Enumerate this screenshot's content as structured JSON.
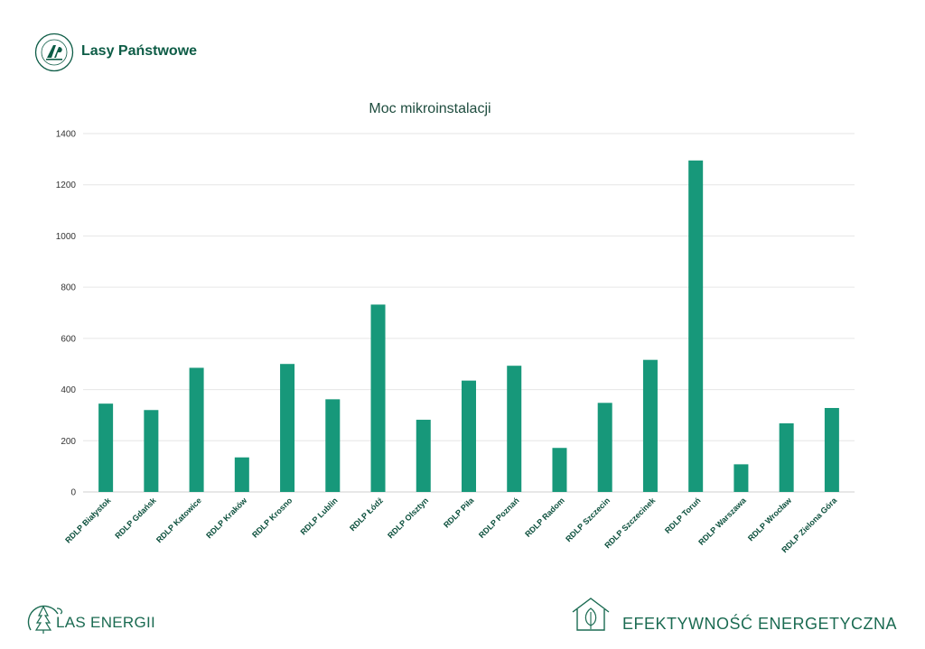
{
  "header": {
    "brand_name": "Lasy Państwowe",
    "logo_ring_text": "LASY PAŃSTWOWE"
  },
  "colors": {
    "bar": "#17987a",
    "brand": "#0d5c46",
    "grid": "#e6e6e6",
    "axis_text": "#333333",
    "label_text": "#0b4f3c"
  },
  "chart_data": {
    "type": "bar",
    "title": "Moc mikroinstalacji",
    "xlabel": "",
    "ylabel": "",
    "ylim": [
      0,
      1400
    ],
    "yticks": [
      0,
      200,
      400,
      600,
      800,
      1000,
      1200,
      1400
    ],
    "grid": true,
    "categories": [
      "RDLP Białystok",
      "RDLP Gdańsk",
      "RDLP Katowice",
      "RDLP Kraków",
      "RDLP Krosno",
      "RDLP Lublin",
      "RDLP Łódź",
      "RDLP Olsztyn",
      "RDLP Piła",
      "RDLP Poznań",
      "RDLP Radom",
      "RDLP Szczecin",
      "RDLP Szczecinek",
      "RDLP Toruń",
      "RDLP Warszawa",
      "RDLP Wrocław",
      "RDLP Zielona Góra"
    ],
    "values": [
      345,
      320,
      485,
      135,
      500,
      362,
      732,
      282,
      435,
      493,
      172,
      348,
      516,
      1295,
      108,
      268,
      328
    ]
  },
  "footer": {
    "left_label": "LAS ENERGII",
    "right_label": "EFEKTYWNOŚĆ ENERGETYCZNA"
  }
}
